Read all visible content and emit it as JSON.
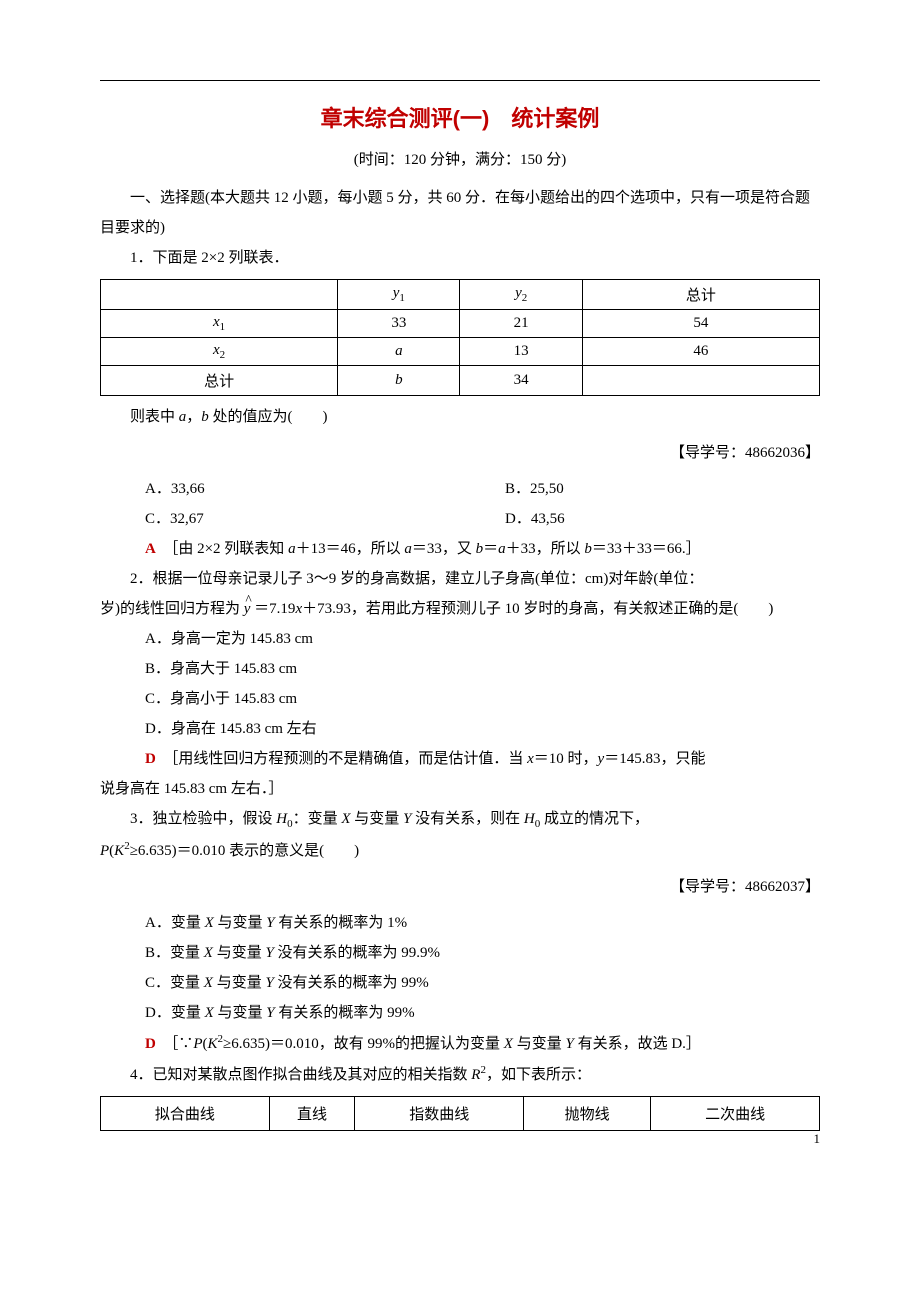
{
  "title": "章末综合测评(一)　统计案例",
  "subtitle": "(时间：120 分钟，满分：150 分)",
  "section1_intro": "一、选择题(本大题共 12 小题，每小题 5 分，共 60 分．在每小题给出的四个选项中，只有一项是符合题目要求的)",
  "q1": {
    "stem": "1．下面是 2×2 列联表．",
    "table": {
      "headers": [
        "",
        "y₁",
        "y₂",
        "总计"
      ],
      "rows": [
        [
          "x₁",
          "33",
          "21",
          "54"
        ],
        [
          "x₂",
          "a",
          "13",
          "46"
        ],
        [
          "总计",
          "b",
          "34",
          ""
        ]
      ]
    },
    "after_table": "则表中 a，b 处的值应为(　　)",
    "ref": "【导学号：48662036】",
    "opts": {
      "A": "A．33,66",
      "B": "B．25,50",
      "C": "C．32,67",
      "D": "D．43,56"
    },
    "ans_letter": "A",
    "ans_text": "　［由 2×2 列联表知 a＋13＝46，所以 a＝33，又 b＝a＋33，所以 b＝33＋33＝66.］"
  },
  "q2": {
    "stem1": "2．根据一位母亲记录儿子 3～9 岁的身高数据，建立儿子身高(单位：cm)对年龄(单位：",
    "stem2_prefix": "岁)的线性回归方程为 ",
    "stem2_eq": "y ＝7.19x＋73.93",
    "stem2_suffix": "，若用此方程预测儿子 10 岁时的身高，有关叙述正确的是(　　)",
    "opts": {
      "A": "A．身高一定为 145.83 cm",
      "B": "B．身高大于 145.83 cm",
      "C": "C．身高小于 145.83 cm",
      "D": "D．身高在 145.83 cm 左右"
    },
    "ans_letter": "D",
    "ans_text": "　［用线性回归方程预测的不是精确值，而是估计值．当 x＝10 时，y＝145.83，只能说身高在 145.83 cm 左右．］"
  },
  "q3": {
    "stem1": "3．独立检验中，假设 H₀：变量 X 与变量 Y 没有关系，则在 H₀ 成立的情况下，",
    "stem2": "P(K²≥6.635)＝0.010 表示的意义是(　　)",
    "ref": "【导学号：48662037】",
    "opts": {
      "A": "A．变量 X 与变量 Y 有关系的概率为 1%",
      "B": "B．变量 X 与变量 Y 没有关系的概率为 99.9%",
      "C": "C．变量 X 与变量 Y 没有关系的概率为 99%",
      "D": "D．变量 X 与变量 Y 有关系的概率为 99%"
    },
    "ans_letter": "D",
    "ans_text": "　［∵P(K²≥6.635)＝0.010，故有 99%的把握认为变量 X 与变量 Y 有关系，故选 D.］"
  },
  "q4": {
    "stem": "4．已知对某散点图作拟合曲线及其对应的相关指数 R²，如下表所示：",
    "table": {
      "cells": [
        "拟合曲线",
        "直线",
        "指数曲线",
        "抛物线",
        "二次曲线"
      ]
    }
  },
  "page_number": "1",
  "colors": {
    "title": "#c00000",
    "answer": "#c00000",
    "text": "#000000",
    "border": "#000000",
    "background": "#ffffff"
  },
  "typography": {
    "title_fontsize": 22,
    "body_fontsize": 15,
    "line_height": 2.0,
    "font_family": "SimSun"
  }
}
